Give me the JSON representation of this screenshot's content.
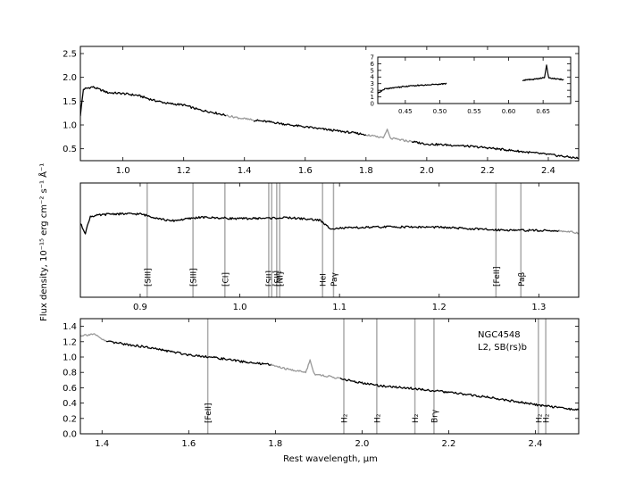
{
  "figure": {
    "ylabel": "Flux density, 10⁻¹⁵ erg cm⁻² s⁻¹ Å⁻¹",
    "xlabel": "Rest wavelength, μm",
    "annotation": [
      "NGC4548",
      "L2,  SB(rs)b"
    ]
  },
  "chart_data": [
    {
      "type": "line",
      "id": "panel-top",
      "xlim": [
        0.86,
        2.5
      ],
      "ylim": [
        0.25,
        2.65
      ],
      "xticks": [
        "1.0",
        "1.2",
        "1.4",
        "1.6",
        "1.8",
        "2.0",
        "2.2",
        "2.4"
      ],
      "xtick_values": [
        1.0,
        1.2,
        1.4,
        1.6,
        1.8,
        2.0,
        2.2,
        2.4
      ],
      "yticks": [
        "0.5",
        "1.0",
        "1.5",
        "2.0",
        "2.5"
      ],
      "ytick_values": [
        0.5,
        1.0,
        1.5,
        2.0,
        2.5
      ],
      "series": [
        {
          "color": "#000000",
          "segments": [
            {
              "x": [
                0.86,
                0.87,
                0.9,
                0.95,
                1.0,
                1.05,
                1.1,
                1.15,
                1.2,
                1.25,
                1.3,
                1.34
              ],
              "y": [
                1.2,
                1.75,
                1.8,
                1.68,
                1.66,
                1.62,
                1.52,
                1.45,
                1.42,
                1.32,
                1.26,
                1.2
              ]
            },
            {
              "x": [
                1.43,
                1.5,
                1.55,
                1.6,
                1.65,
                1.7,
                1.75,
                1.8
              ],
              "y": [
                1.1,
                1.05,
                1.0,
                0.96,
                0.92,
                0.88,
                0.84,
                0.8
              ]
            },
            {
              "x": [
                1.95,
                2.0,
                2.1,
                2.2,
                2.3,
                2.4,
                2.5
              ],
              "y": [
                0.65,
                0.6,
                0.57,
                0.52,
                0.45,
                0.38,
                0.3
              ]
            }
          ]
        },
        {
          "color": "#999999",
          "segments": [
            {
              "x": [
                1.34,
                1.38,
                1.43
              ],
              "y": [
                1.2,
                1.15,
                1.1
              ]
            },
            {
              "x": [
                1.8,
                1.84,
                1.86,
                1.87,
                1.88,
                1.9,
                1.95
              ],
              "y": [
                0.8,
                0.74,
                0.75,
                0.9,
                0.72,
                0.7,
                0.65
              ]
            }
          ]
        }
      ],
      "inset": {
        "xlim": [
          0.41,
          0.69
        ],
        "ylim": [
          0,
          7
        ],
        "xticks": [
          "0.45",
          "0.50",
          "0.55",
          "0.60",
          "0.65"
        ],
        "xtick_values": [
          0.45,
          0.5,
          0.55,
          0.6,
          0.65
        ],
        "yticks": [
          "0",
          "1",
          "2",
          "3",
          "4",
          "5",
          "6",
          "7"
        ],
        "ytick_values": [
          0,
          1,
          2,
          3,
          4,
          5,
          6,
          7
        ],
        "segments": [
          {
            "x": [
              0.41,
              0.42,
              0.45,
              0.48,
              0.51
            ],
            "y": [
              1.5,
              2.2,
              2.6,
              2.8,
              3.0
            ]
          },
          {
            "x": [
              0.62,
              0.64,
              0.652,
              0.655,
              0.658,
              0.67,
              0.68
            ],
            "y": [
              3.5,
              3.7,
              3.9,
              5.8,
              3.9,
              3.7,
              3.6
            ]
          }
        ]
      }
    },
    {
      "type": "line",
      "id": "panel-middle",
      "xlim": [
        0.84,
        1.34
      ],
      "ylim": [
        0.0,
        2.4
      ],
      "xticks": [
        "0.9",
        "1.0",
        "1.1",
        "1.2",
        "1.3"
      ],
      "xtick_values": [
        0.9,
        1.0,
        1.1,
        1.2,
        1.3
      ],
      "series": [
        {
          "color": "#000000",
          "segments": [
            {
              "x": [
                0.84,
                0.845,
                0.85,
                0.87,
                0.9,
                0.93,
                0.96,
                1.0,
                1.05,
                1.08,
                1.09,
                1.1,
                1.15,
                1.2,
                1.25,
                1.3,
                1.32
              ],
              "y": [
                1.55,
                1.35,
                1.7,
                1.75,
                1.75,
                1.6,
                1.68,
                1.65,
                1.67,
                1.62,
                1.45,
                1.45,
                1.48,
                1.47,
                1.42,
                1.4,
                1.4
              ]
            }
          ]
        },
        {
          "color": "#999999",
          "segments": [
            {
              "x": [
                1.32,
                1.34
              ],
              "y": [
                1.4,
                1.35
              ]
            }
          ]
        }
      ],
      "lines": [
        {
          "x": 0.907,
          "label": "[SIII]"
        },
        {
          "x": 0.953,
          "label": "[SIII]"
        },
        {
          "x": 0.985,
          "label": "[CI]"
        },
        {
          "x": 1.029,
          "label": "[SII]"
        },
        {
          "x": 1.032,
          "label": ""
        },
        {
          "x": 1.037,
          "label": "[SII]"
        },
        {
          "x": 1.04,
          "label": "[NI]"
        },
        {
          "x": 1.083,
          "label": "HeI"
        },
        {
          "x": 1.094,
          "label": "Paγ"
        },
        {
          "x": 1.257,
          "label": "[FeII]"
        },
        {
          "x": 1.282,
          "label": "Paβ"
        }
      ]
    },
    {
      "type": "line",
      "id": "panel-bottom",
      "xlim": [
        1.35,
        2.5
      ],
      "ylim": [
        0.0,
        1.5
      ],
      "xticks": [
        "1.4",
        "1.6",
        "1.8",
        "2.0",
        "2.2",
        "2.4"
      ],
      "xtick_values": [
        1.4,
        1.6,
        1.8,
        2.0,
        2.2,
        2.4
      ],
      "yticks": [
        "0.0",
        "0.2",
        "0.4",
        "0.6",
        "0.8",
        "1.0",
        "1.2",
        "1.4"
      ],
      "ytick_values": [
        0.0,
        0.2,
        0.4,
        0.6,
        0.8,
        1.0,
        1.2,
        1.4
      ],
      "series": [
        {
          "color": "#999999",
          "segments": [
            {
              "x": [
                1.35,
                1.38,
                1.41
              ],
              "y": [
                1.28,
                1.3,
                1.2
              ]
            },
            {
              "x": [
                1.79,
                1.82,
                1.85,
                1.87,
                1.88,
                1.89,
                1.91,
                1.93,
                1.95
              ],
              "y": [
                0.9,
                0.85,
                0.82,
                0.8,
                0.96,
                0.78,
                0.76,
                0.74,
                0.72
              ]
            }
          ]
        },
        {
          "color": "#000000",
          "segments": [
            {
              "x": [
                1.41,
                1.45,
                1.5,
                1.55,
                1.6,
                1.65,
                1.7,
                1.75,
                1.79
              ],
              "y": [
                1.2,
                1.17,
                1.13,
                1.08,
                1.03,
                1.0,
                0.96,
                0.92,
                0.9
              ]
            },
            {
              "x": [
                1.95,
                2.0,
                2.05,
                2.1,
                2.15,
                2.2,
                2.3,
                2.4,
                2.5
              ],
              "y": [
                0.72,
                0.66,
                0.62,
                0.6,
                0.57,
                0.54,
                0.47,
                0.38,
                0.31
              ]
            }
          ]
        }
      ],
      "lines": [
        {
          "x": 1.644,
          "label": "[FeII]"
        },
        {
          "x": 1.958,
          "label": "H₂"
        },
        {
          "x": 2.034,
          "label": "H₂"
        },
        {
          "x": 2.122,
          "label": "H₂"
        },
        {
          "x": 2.166,
          "label": "Brγ"
        },
        {
          "x": 2.407,
          "label": "H₂"
        },
        {
          "x": 2.424,
          "label": "H₂"
        }
      ]
    }
  ]
}
